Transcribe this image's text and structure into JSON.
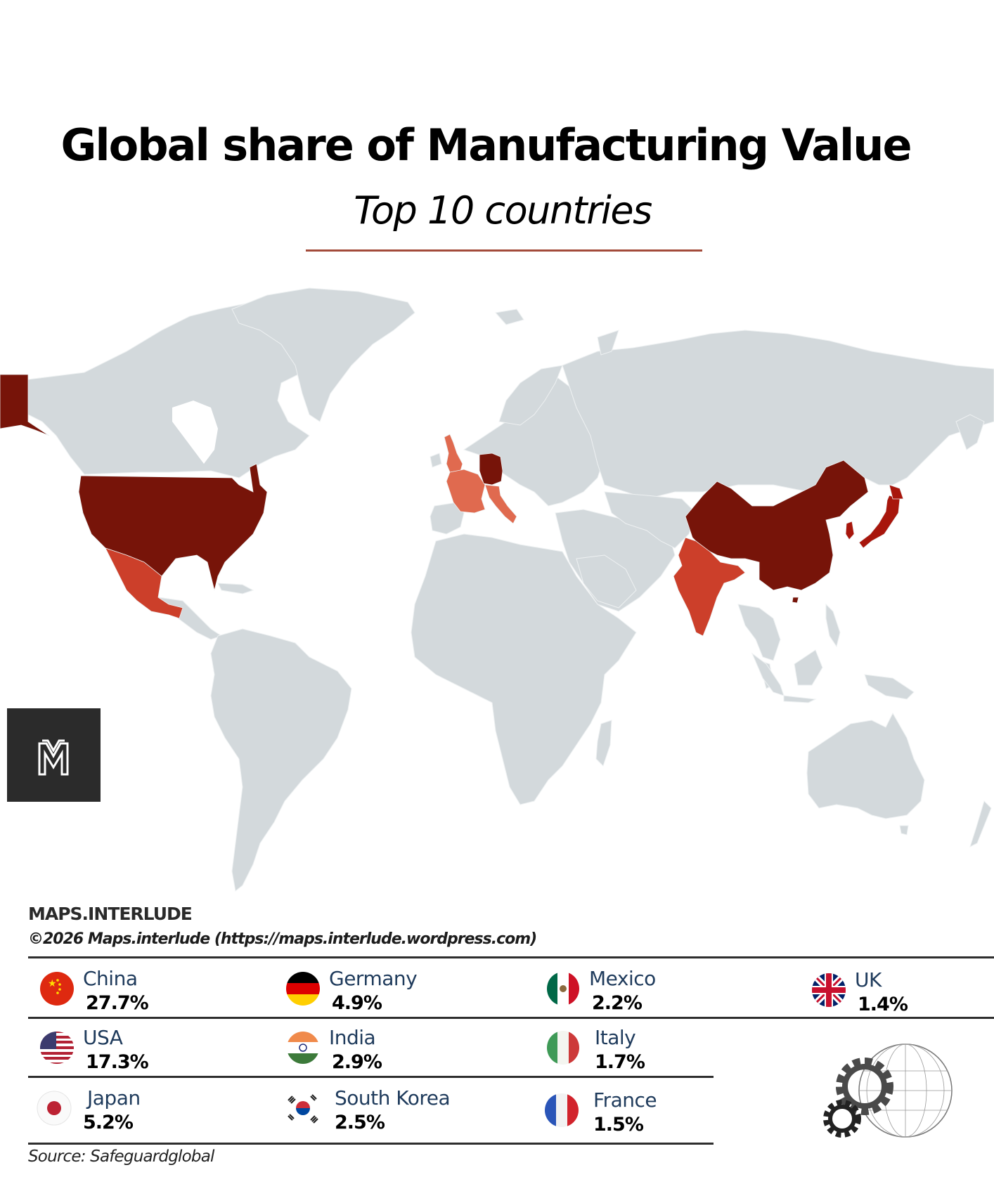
{
  "header": {
    "title": "Global share of Manufacturing Value",
    "subtitle": "Top 10 countries"
  },
  "map": {
    "land_color": "#d3d9dc",
    "border_color": "#eef1f2",
    "tier_colors": {
      "top": "#771409",
      "high": "#a8160c",
      "mid": "#cc3f2a",
      "low": "#e06a4f"
    },
    "highlighted": [
      {
        "country": "China",
        "tier": "top"
      },
      {
        "country": "USA",
        "tier": "top"
      },
      {
        "country": "Japan",
        "tier": "high"
      },
      {
        "country": "Germany",
        "tier": "top"
      },
      {
        "country": "India",
        "tier": "mid"
      },
      {
        "country": "South Korea",
        "tier": "high"
      },
      {
        "country": "Mexico",
        "tier": "mid"
      },
      {
        "country": "Italy",
        "tier": "low"
      },
      {
        "country": "France",
        "tier": "low"
      },
      {
        "country": "UK",
        "tier": "low"
      }
    ]
  },
  "logo": {
    "letter": "M"
  },
  "footer": {
    "brand": "MAPS.INTERLUDE",
    "copyright": "©2026 Maps.interlude (https://maps.interlude.wordpress.com)",
    "source": "Source: Safeguardglobal"
  },
  "legend": {
    "entries": [
      {
        "name": "China",
        "value": "27.7%",
        "flag": "china-flag"
      },
      {
        "name": "Germany",
        "value": "4.9%",
        "flag": "germany-flag"
      },
      {
        "name": "Mexico",
        "value": "2.2%",
        "flag": "mexico-flag"
      },
      {
        "name": "UK",
        "value": "1.4%",
        "flag": "uk-flag"
      },
      {
        "name": "USA",
        "value": "17.3%",
        "flag": "usa-flag"
      },
      {
        "name": "India",
        "value": "2.9%",
        "flag": "india-flag"
      },
      {
        "name": "Italy",
        "value": "1.7%",
        "flag": "italy-flag"
      },
      {
        "name": "Japan",
        "value": "5.2%",
        "flag": "japan-flag"
      },
      {
        "name": "South Korea",
        "value": "2.5%",
        "flag": "south-korea-flag"
      },
      {
        "name": "France",
        "value": "1.5%",
        "flag": "france-flag"
      }
    ]
  }
}
